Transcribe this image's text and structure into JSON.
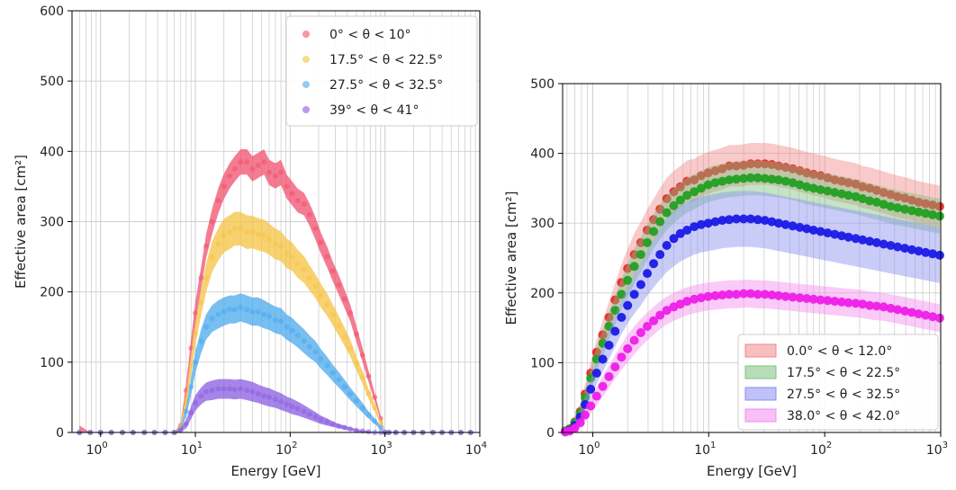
{
  "chart_data": [
    {
      "type": "scatter",
      "xscale": "log",
      "xlim": [
        0.5,
        10000
      ],
      "ylim": [
        0,
        600
      ],
      "xlabel": "Energy [GeV]",
      "ylabel": "Effective area [cm²]",
      "xticks": [
        {
          "value": 1,
          "base": "10",
          "exp": "0"
        },
        {
          "value": 10,
          "base": "10",
          "exp": "1"
        },
        {
          "value": 100,
          "base": "10",
          "exp": "2"
        },
        {
          "value": 1000,
          "base": "10",
          "exp": "3"
        },
        {
          "value": 10000,
          "base": "10",
          "exp": "4"
        }
      ],
      "yticks": [
        0,
        100,
        200,
        300,
        400,
        500,
        600
      ],
      "grid": true,
      "legend_position": "top-right",
      "x": [
        0.6,
        0.78,
        1.0,
        1.3,
        1.7,
        2.2,
        2.9,
        3.7,
        4.8,
        6.0,
        7.0,
        8.0,
        9.0,
        10,
        11.5,
        13,
        15,
        17.5,
        20,
        23,
        26,
        30,
        35,
        40,
        46,
        53,
        60,
        70,
        80,
        92,
        105,
        120,
        140,
        160,
        185,
        210,
        245,
        280,
        325,
        375,
        430,
        500,
        580,
        670,
        780,
        900,
        1000,
        1100,
        1300,
        1600,
        2000,
        2500,
        3200,
        4000,
        5000,
        6300,
        8000
      ],
      "series": [
        {
          "name": "0° < θ < 10°",
          "color": "#f0506e",
          "values": [
            0,
            0,
            0,
            0,
            0,
            0,
            0,
            0,
            0,
            0,
            10,
            60,
            120,
            170,
            220,
            265,
            300,
            330,
            350,
            365,
            375,
            385,
            385,
            375,
            380,
            385,
            370,
            365,
            370,
            350,
            340,
            330,
            325,
            310,
            290,
            270,
            250,
            230,
            210,
            190,
            170,
            140,
            110,
            80,
            50,
            20,
            0,
            0,
            0,
            0,
            0,
            0,
            0,
            0,
            0,
            0,
            0
          ],
          "band": [
            10,
            0,
            0,
            0,
            0,
            0,
            0,
            0,
            0,
            0,
            3,
            10,
            12,
            15,
            16,
            17,
            18,
            18,
            18,
            18,
            18,
            18,
            18,
            18,
            18,
            18,
            18,
            18,
            18,
            17,
            17,
            17,
            16,
            16,
            16,
            15,
            15,
            14,
            14,
            13,
            12,
            11,
            10,
            8,
            6,
            3,
            0,
            0,
            0,
            0,
            0,
            0,
            0,
            0,
            0,
            0,
            0
          ]
        },
        {
          "name": "17.5° < θ < 22.5°",
          "color": "#f5c242",
          "values": [
            0,
            0,
            0,
            0,
            0,
            0,
            0,
            0,
            0,
            0,
            8,
            45,
            95,
            140,
            185,
            220,
            250,
            268,
            280,
            285,
            290,
            290,
            285,
            285,
            282,
            280,
            275,
            268,
            265,
            255,
            250,
            240,
            232,
            220,
            208,
            195,
            182,
            168,
            152,
            136,
            120,
            98,
            78,
            55,
            35,
            14,
            0,
            0,
            0,
            0,
            0,
            0,
            0,
            0,
            0,
            0,
            0
          ],
          "band": [
            0,
            0,
            0,
            0,
            0,
            0,
            0,
            0,
            0,
            0,
            3,
            10,
            14,
            16,
            18,
            20,
            22,
            23,
            24,
            24,
            24,
            24,
            24,
            23,
            23,
            23,
            22,
            22,
            21,
            21,
            20,
            20,
            19,
            18,
            17,
            17,
            16,
            15,
            14,
            13,
            12,
            10,
            9,
            7,
            5,
            3,
            0,
            0,
            0,
            0,
            0,
            0,
            0,
            0,
            0,
            0,
            0
          ]
        },
        {
          "name": "27.5° < θ < 32.5°",
          "color": "#4aa8ec",
          "values": [
            0,
            0,
            0,
            0,
            0,
            0,
            0,
            0,
            0,
            0,
            5,
            30,
            65,
            100,
            130,
            150,
            162,
            168,
            172,
            175,
            175,
            178,
            175,
            172,
            172,
            168,
            165,
            160,
            158,
            150,
            145,
            138,
            130,
            122,
            115,
            105,
            95,
            85,
            75,
            65,
            55,
            45,
            35,
            25,
            16,
            7,
            0,
            0,
            0,
            0,
            0,
            0,
            0,
            0,
            0,
            0,
            0
          ],
          "band": [
            0,
            0,
            0,
            0,
            0,
            0,
            0,
            0,
            0,
            0,
            2,
            8,
            12,
            15,
            17,
            18,
            19,
            20,
            20,
            20,
            20,
            20,
            20,
            20,
            20,
            20,
            19,
            19,
            19,
            18,
            18,
            17,
            17,
            16,
            15,
            14,
            13,
            12,
            11,
            10,
            9,
            8,
            7,
            5,
            4,
            2,
            0,
            0,
            0,
            0,
            0,
            0,
            0,
            0,
            0,
            0,
            0
          ]
        },
        {
          "name": "39° < θ < 41°",
          "color": "#8a5ce0",
          "values": [
            0,
            0,
            0,
            0,
            0,
            0,
            0,
            0,
            0,
            0,
            3,
            12,
            28,
            42,
            52,
            58,
            60,
            62,
            62,
            62,
            61,
            62,
            60,
            58,
            55,
            52,
            50,
            47,
            44,
            40,
            37,
            34,
            30,
            26,
            22,
            18,
            15,
            12,
            9,
            7,
            5,
            3,
            2,
            1,
            0,
            0,
            0,
            0,
            0,
            0,
            0,
            0,
            0,
            0,
            0,
            0,
            0
          ],
          "band": [
            0,
            0,
            0,
            0,
            0,
            0,
            0,
            0,
            0,
            0,
            2,
            6,
            9,
            11,
            12,
            13,
            14,
            14,
            14,
            14,
            14,
            14,
            14,
            14,
            13,
            13,
            13,
            12,
            12,
            11,
            11,
            10,
            9,
            8,
            7,
            6,
            5,
            4,
            3,
            3,
            2,
            2,
            1,
            1,
            0,
            0,
            0,
            0,
            0,
            0,
            0,
            0,
            0,
            0,
            0,
            0,
            0
          ]
        }
      ]
    },
    {
      "type": "scatter",
      "xscale": "log",
      "xlim": [
        0.55,
        1000
      ],
      "ylim": [
        0,
        500
      ],
      "xlabel": "Energy [GeV]",
      "ylabel": "Effective area [cm²]",
      "xticks": [
        {
          "value": 1,
          "base": "10",
          "exp": "0"
        },
        {
          "value": 10,
          "base": "10",
          "exp": "1"
        },
        {
          "value": 100,
          "base": "10",
          "exp": "2"
        },
        {
          "value": 1000,
          "base": "10",
          "exp": "3"
        }
      ],
      "yticks": [
        0,
        100,
        200,
        300,
        400,
        500
      ],
      "grid": true,
      "legend_position": "bottom-right",
      "x": [
        0.58,
        0.63,
        0.7,
        0.78,
        0.86,
        0.96,
        1.08,
        1.22,
        1.38,
        1.56,
        1.77,
        2.0,
        2.28,
        2.6,
        2.95,
        3.35,
        3.8,
        4.35,
        5.0,
        5.7,
        6.5,
        7.5,
        8.6,
        9.9,
        11.4,
        13.1,
        15,
        17.3,
        20,
        23,
        26.5,
        30.5,
        35,
        40,
        46,
        53,
        61,
        70,
        80,
        92,
        106,
        122,
        140,
        160,
        185,
        212,
        244,
        280,
        322,
        370,
        425,
        490,
        563,
        646,
        742,
        852,
        980
      ],
      "series": [
        {
          "name": "0.0° < θ < 12.0°",
          "color": "#e8282a",
          "band_color": "#f08a8a",
          "values": [
            2,
            5,
            15,
            30,
            55,
            85,
            115,
            140,
            165,
            190,
            215,
            235,
            255,
            272,
            290,
            305,
            320,
            335,
            345,
            352,
            360,
            362,
            368,
            372,
            375,
            378,
            382,
            382,
            383,
            385,
            385,
            385,
            384,
            382,
            380,
            378,
            375,
            372,
            370,
            368,
            365,
            362,
            360,
            358,
            356,
            352,
            350,
            347,
            344,
            341,
            338,
            336,
            333,
            330,
            328,
            326,
            324
          ],
          "band": [
            2,
            5,
            10,
            12,
            14,
            16,
            18,
            20,
            22,
            24,
            26,
            28,
            30,
            30,
            30,
            30,
            30,
            30,
            30,
            30,
            30,
            30,
            30,
            30,
            30,
            30,
            30,
            30,
            30,
            30,
            30,
            30,
            30,
            30,
            30,
            30,
            30,
            30,
            30,
            30,
            30,
            30,
            30,
            30,
            30,
            30,
            30,
            30,
            30,
            30,
            30,
            30,
            30,
            30,
            30,
            30,
            30
          ]
        },
        {
          "name": "17.5° < θ < 22.5°",
          "color": "#22a022",
          "band_color": "#7fc07f",
          "values": [
            2,
            5,
            14,
            28,
            50,
            78,
            105,
            128,
            152,
            175,
            198,
            218,
            238,
            255,
            272,
            288,
            302,
            315,
            325,
            333,
            340,
            345,
            350,
            355,
            358,
            360,
            362,
            363,
            364,
            365,
            365,
            364,
            363,
            362,
            360,
            358,
            355,
            352,
            350,
            348,
            346,
            344,
            342,
            340,
            338,
            335,
            332,
            330,
            327,
            324,
            322,
            320,
            318,
            316,
            314,
            312,
            310
          ],
          "band": [
            2,
            5,
            9,
            11,
            13,
            15,
            17,
            19,
            20,
            21,
            22,
            24,
            25,
            25,
            25,
            25,
            25,
            25,
            25,
            25,
            25,
            25,
            25,
            25,
            25,
            25,
            25,
            25,
            25,
            25,
            25,
            25,
            25,
            25,
            25,
            25,
            25,
            25,
            25,
            25,
            25,
            25,
            25,
            25,
            25,
            25,
            25,
            25,
            25,
            25,
            25,
            25,
            25,
            25,
            25,
            25,
            25
          ]
        },
        {
          "name": "27.5° < θ < 32.5°",
          "color": "#1a1ae6",
          "band_color": "#8a8ef0",
          "values": [
            1,
            3,
            10,
            22,
            40,
            62,
            85,
            105,
            125,
            145,
            165,
            182,
            198,
            212,
            228,
            242,
            255,
            268,
            278,
            285,
            290,
            295,
            298,
            300,
            302,
            304,
            305,
            306,
            306,
            306,
            305,
            304,
            302,
            300,
            298,
            296,
            294,
            292,
            290,
            288,
            286,
            284,
            282,
            280,
            278,
            276,
            274,
            272,
            270,
            268,
            266,
            264,
            262,
            260,
            258,
            256,
            254
          ],
          "band": [
            1,
            3,
            8,
            10,
            12,
            14,
            16,
            18,
            20,
            22,
            24,
            26,
            28,
            30,
            32,
            34,
            36,
            38,
            40,
            40,
            40,
            40,
            40,
            40,
            40,
            40,
            40,
            40,
            40,
            40,
            40,
            40,
            40,
            40,
            40,
            40,
            40,
            40,
            40,
            40,
            40,
            40,
            40,
            40,
            40,
            40,
            40,
            40,
            40,
            40,
            40,
            40,
            40,
            40,
            40,
            40,
            40
          ]
        },
        {
          "name": "38.0° < θ < 42.0°",
          "color": "#ee1ee8",
          "band_color": "#f48af0",
          "values": [
            1,
            2,
            6,
            14,
            25,
            38,
            52,
            66,
            80,
            94,
            108,
            120,
            132,
            143,
            152,
            160,
            168,
            175,
            180,
            184,
            188,
            191,
            193,
            195,
            196,
            197,
            198,
            198,
            199,
            199,
            198,
            198,
            197,
            196,
            195,
            194,
            193,
            192,
            191,
            190,
            189,
            188,
            187,
            186,
            185,
            184,
            182,
            181,
            180,
            178,
            176,
            174,
            172,
            170,
            168,
            166,
            164
          ],
          "band": [
            1,
            2,
            5,
            7,
            9,
            11,
            13,
            15,
            16,
            17,
            18,
            20,
            20,
            20,
            20,
            20,
            20,
            20,
            20,
            20,
            20,
            20,
            20,
            20,
            20,
            20,
            20,
            20,
            20,
            20,
            20,
            20,
            20,
            20,
            20,
            20,
            20,
            20,
            20,
            20,
            20,
            20,
            20,
            20,
            20,
            20,
            20,
            20,
            20,
            20,
            20,
            20,
            20,
            20,
            20,
            20,
            20
          ]
        }
      ]
    }
  ]
}
